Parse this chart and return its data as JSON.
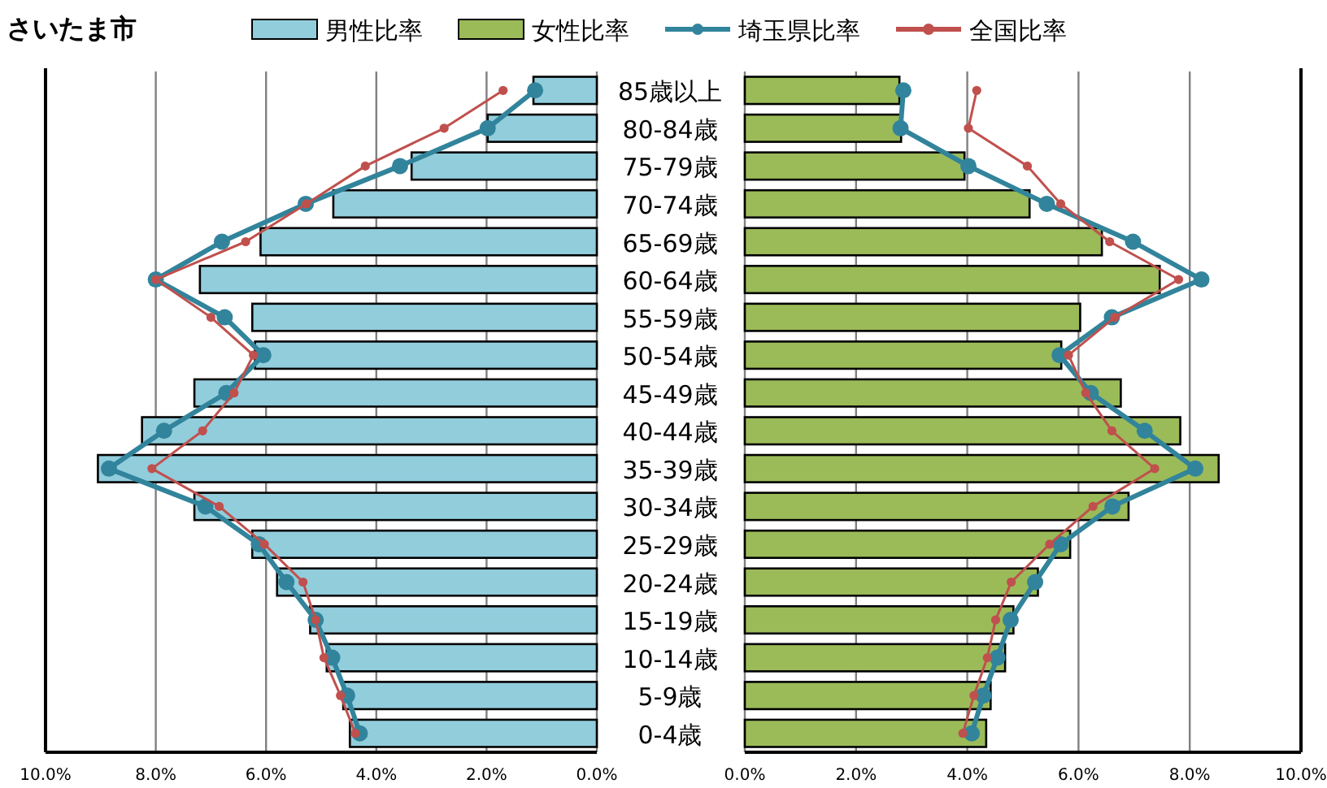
{
  "chart_data": [
    {
      "type": "bar",
      "orientation": "horizontal",
      "title": "さいたま市",
      "legend": "top",
      "grid": "x",
      "categories": [
        "85歳以上",
        "80-84歳",
        "75-79歳",
        "70-74歳",
        "65-69歳",
        "60-64歳",
        "55-59歳",
        "50-54歳",
        "45-49歳",
        "40-44歳",
        "35-39歳",
        "30-34歳",
        "25-29歳",
        "20-24歳",
        "15-19歳",
        "10-14歳",
        "5-9歳",
        "0-4歳"
      ],
      "xlim": [
        10,
        0
      ],
      "xticks": [
        {
          "value": 10,
          "label": "10.0%"
        },
        {
          "value": 8,
          "label": "8.0%"
        },
        {
          "value": 6,
          "label": "6.0%"
        },
        {
          "value": 4,
          "label": "4.0%"
        },
        {
          "value": 2,
          "label": "2.0%"
        },
        {
          "value": 0,
          "label": "0.0%"
        }
      ],
      "series": [
        {
          "name": "男性比率",
          "type": "bar",
          "color": "#92cddc",
          "values": [
            1.15,
            1.98,
            3.36,
            4.78,
            6.1,
            7.2,
            6.25,
            6.2,
            7.3,
            8.25,
            9.05,
            7.3,
            6.25,
            5.8,
            5.2,
            4.9,
            4.6,
            4.48
          ]
        },
        {
          "name": "埼玉県比率",
          "type": "line",
          "marker": "circle",
          "color": "#31849b",
          "values": [
            1.12,
            1.98,
            3.57,
            5.28,
            6.8,
            8.0,
            6.75,
            6.05,
            6.72,
            7.85,
            8.85,
            7.1,
            6.13,
            5.63,
            5.1,
            4.8,
            4.53,
            4.3
          ]
        },
        {
          "name": "全国比率",
          "type": "line",
          "marker": "circle",
          "color": "#c0504d",
          "values": [
            1.7,
            2.77,
            4.2,
            5.27,
            6.37,
            8.0,
            7.0,
            6.23,
            6.58,
            7.15,
            8.07,
            6.85,
            6.03,
            5.33,
            5.1,
            4.95,
            4.65,
            4.38
          ]
        }
      ]
    },
    {
      "type": "bar",
      "orientation": "horizontal",
      "legend": "top",
      "grid": "x",
      "xlim": [
        0,
        10
      ],
      "xticks": [
        {
          "value": 0,
          "label": "0.0%"
        },
        {
          "value": 2,
          "label": "2.0%"
        },
        {
          "value": 4,
          "label": "4.0%"
        },
        {
          "value": 6,
          "label": "6.0%"
        },
        {
          "value": 8,
          "label": "8.0%"
        },
        {
          "value": 10,
          "label": "10.0%"
        }
      ],
      "series": [
        {
          "name": "女性比率",
          "type": "bar",
          "color": "#9bbb59",
          "values": [
            2.78,
            2.81,
            3.95,
            5.12,
            6.42,
            7.46,
            6.03,
            5.69,
            6.76,
            7.83,
            8.52,
            6.9,
            5.85,
            5.27,
            4.83,
            4.68,
            4.42,
            4.34
          ]
        },
        {
          "name": "埼玉県比率",
          "type": "line",
          "marker": "circle",
          "color": "#31849b",
          "values": [
            2.85,
            2.8,
            4.02,
            5.43,
            6.98,
            8.21,
            6.6,
            5.66,
            6.22,
            7.19,
            8.1,
            6.61,
            5.68,
            5.22,
            4.78,
            4.54,
            4.29,
            4.08
          ]
        },
        {
          "name": "全国比率",
          "type": "line",
          "marker": "circle",
          "color": "#c0504d",
          "values": [
            4.17,
            4.02,
            5.08,
            5.68,
            6.56,
            7.8,
            6.65,
            5.82,
            6.13,
            6.6,
            7.37,
            6.26,
            5.48,
            4.79,
            4.51,
            4.36,
            4.12,
            3.92
          ]
        }
      ]
    }
  ]
}
